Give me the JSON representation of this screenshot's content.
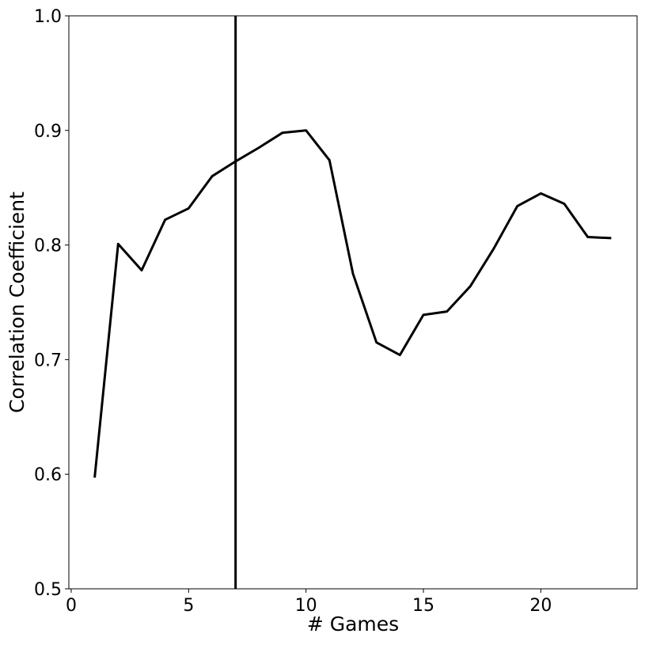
{
  "chart_data": {
    "type": "line",
    "title": "",
    "xlabel": "# Games",
    "ylabel": "Correlation Coefficient",
    "xlim": [
      -0.1,
      24.1
    ],
    "ylim": [
      0.5,
      1.0
    ],
    "xticks": [
      0,
      5,
      10,
      15,
      20
    ],
    "yticks": [
      0.5,
      0.6,
      0.7,
      0.8,
      0.9,
      1.0
    ],
    "xtick_labels": [
      "0",
      "5",
      "10",
      "15",
      "20"
    ],
    "ytick_labels": [
      "0.5",
      "0.6",
      "0.7",
      "0.8",
      "0.9",
      "1.0"
    ],
    "grid": false,
    "legend": "none",
    "vline_x": 7,
    "series": [
      {
        "color": "#000000",
        "x": [
          1,
          2,
          3,
          4,
          5,
          6,
          7,
          8,
          9,
          10,
          11,
          12,
          13,
          14,
          15,
          16,
          17,
          18,
          19,
          20,
          21,
          22,
          23
        ],
        "y": [
          0.597,
          0.801,
          0.778,
          0.822,
          0.832,
          0.86,
          0.873,
          0.885,
          0.898,
          0.9,
          0.874,
          0.775,
          0.715,
          0.704,
          0.739,
          0.742,
          0.764,
          0.797,
          0.834,
          0.845,
          0.836,
          0.807,
          0.806
        ]
      }
    ]
  }
}
